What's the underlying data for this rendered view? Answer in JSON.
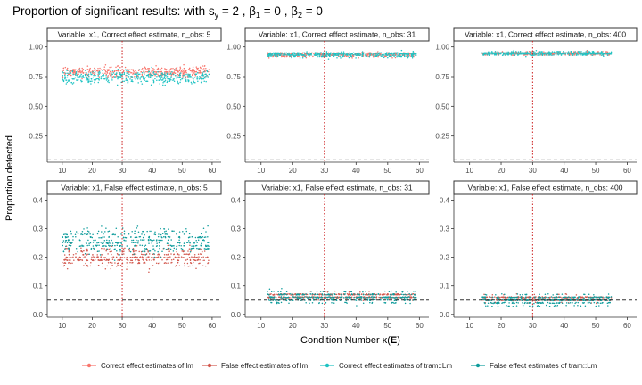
{
  "chart_data": {
    "type": "scatter",
    "title_prefix": "Proportion of significant results:  with s",
    "title_sub1": "y",
    "title_mid1": " = 2 , β",
    "title_sub2": "1",
    "title_mid2": " = 0 , β",
    "title_sub3": "2",
    "title_end": " = 0",
    "xlabel_prefix": "Condition Number κ(",
    "xlabel_bold": "E",
    "xlabel_suffix": ")",
    "ylabel": "Proportion detected",
    "x_ticks": [
      "10",
      "20",
      "30",
      "40",
      "50",
      "60"
    ],
    "x_range": [
      5,
      63
    ],
    "top_row": {
      "ylim": [
        0.03,
        1.05
      ],
      "y_ticks": [
        "0.25",
        "0.50",
        "0.75",
        "1.00"
      ]
    },
    "bottom_row": {
      "ylim": [
        -0.01,
        0.42
      ],
      "y_ticks": [
        "0.0",
        "0.1",
        "0.2",
        "0.3",
        "0.4"
      ]
    },
    "reference_lines": {
      "vline_x": 30,
      "hline_y": 0.05
    },
    "series": [
      {
        "name": "Correct effect estimates of lm",
        "color": "#F8766D"
      },
      {
        "name": "False effect estimates of lm",
        "color": "#D2584E"
      },
      {
        "name": "Correct effect estimates of tram::Lm",
        "color": "#1FC3C3"
      },
      {
        "name": "False effect estimates of tram::Lm",
        "color": "#0E9C9C"
      }
    ],
    "panels": [
      {
        "label": "Variable: x1, Correct effect estimate, n_obs: 5",
        "row": 0,
        "col": 0,
        "x_extent": [
          10,
          59
        ],
        "clouds": [
          {
            "series": 0,
            "mean": 0.79,
            "spread": 0.045
          },
          {
            "series": 2,
            "mean": 0.745,
            "spread": 0.055
          }
        ]
      },
      {
        "label": "Variable: x1, Correct effect estimate, n_obs: 31",
        "row": 0,
        "col": 1,
        "x_extent": [
          12,
          59
        ],
        "clouds": [
          {
            "series": 0,
            "mean": 0.935,
            "spread": 0.018
          },
          {
            "series": 2,
            "mean": 0.935,
            "spread": 0.02
          }
        ]
      },
      {
        "label": "Variable: x1, Correct effect estimate, n_obs: 400",
        "row": 0,
        "col": 2,
        "x_extent": [
          14,
          55
        ],
        "clouds": [
          {
            "series": 0,
            "mean": 0.945,
            "spread": 0.015
          },
          {
            "series": 2,
            "mean": 0.945,
            "spread": 0.018
          }
        ]
      },
      {
        "label": "Variable: x1, False effect estimate, n_obs: 5",
        "row": 1,
        "col": 0,
        "x_extent": [
          10,
          59
        ],
        "clouds": [
          {
            "series": 1,
            "mean": 0.2,
            "spread": 0.035
          },
          {
            "series": 3,
            "mean": 0.255,
            "spread": 0.045
          }
        ]
      },
      {
        "label": "Variable: x1, False effect estimate, n_obs: 31",
        "row": 1,
        "col": 1,
        "x_extent": [
          12,
          59
        ],
        "clouds": [
          {
            "series": 1,
            "mean": 0.065,
            "spread": 0.01
          },
          {
            "series": 3,
            "mean": 0.06,
            "spread": 0.02
          }
        ]
      },
      {
        "label": "Variable: x1, False effect estimate, n_obs: 400",
        "row": 1,
        "col": 2,
        "x_extent": [
          14,
          55
        ],
        "clouds": [
          {
            "series": 1,
            "mean": 0.055,
            "spread": 0.01
          },
          {
            "series": 3,
            "mean": 0.05,
            "spread": 0.02
          }
        ]
      }
    ]
  }
}
